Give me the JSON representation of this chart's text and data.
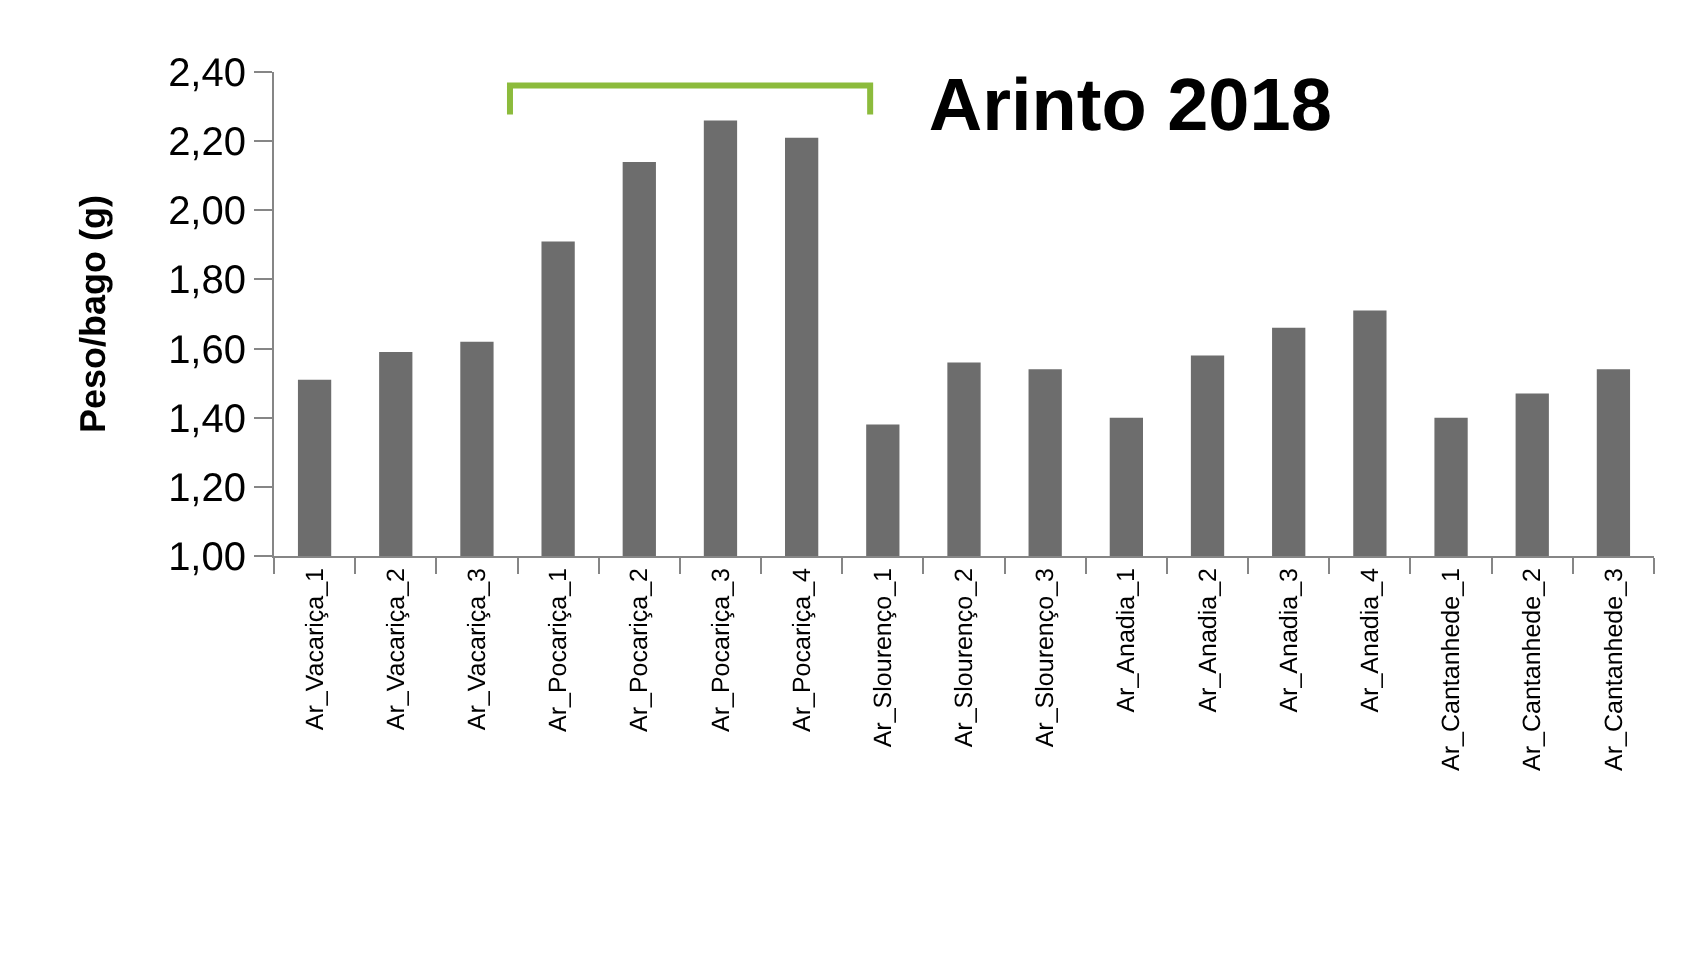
{
  "chart_data": {
    "type": "bar",
    "title": "Arinto 2018",
    "ylabel": "Peso/bago (g)",
    "categories": [
      "Ar_Vacariça_1",
      "Ar_Vacariça_2",
      "Ar_Vacariça_3",
      "Ar_Pocariça_1",
      "Ar_Pocariça_2",
      "Ar_Pocariça_3",
      "Ar_Pocariça_4",
      "Ar_Slourenço_1",
      "Ar_Slourenço_2",
      "Ar_Slourenço_3",
      "Ar_Anadia_1",
      "Ar_Anadia_2",
      "Ar_Anadia_3",
      "Ar_Anadia_4",
      "Ar_Cantanhede_1",
      "Ar_Cantanhede_2",
      "Ar_Cantanhede_3"
    ],
    "values": [
      1.51,
      1.59,
      1.62,
      1.91,
      2.14,
      2.26,
      2.21,
      1.38,
      1.56,
      1.54,
      1.4,
      1.58,
      1.66,
      1.71,
      1.4,
      1.47,
      1.54
    ],
    "color": "#6d6d6d",
    "ylim": [
      1.0,
      2.4
    ],
    "yticks": [
      {
        "value": 1.0,
        "label": "1,00"
      },
      {
        "value": 1.2,
        "label": "1,20"
      },
      {
        "value": 1.4,
        "label": "1,40"
      },
      {
        "value": 1.6,
        "label": "1,60"
      },
      {
        "value": 1.8,
        "label": "1,80"
      },
      {
        "value": 2.0,
        "label": "2,00"
      },
      {
        "value": 2.2,
        "label": "2,20"
      },
      {
        "value": 2.4,
        "label": "2,40"
      }
    ]
  }
}
